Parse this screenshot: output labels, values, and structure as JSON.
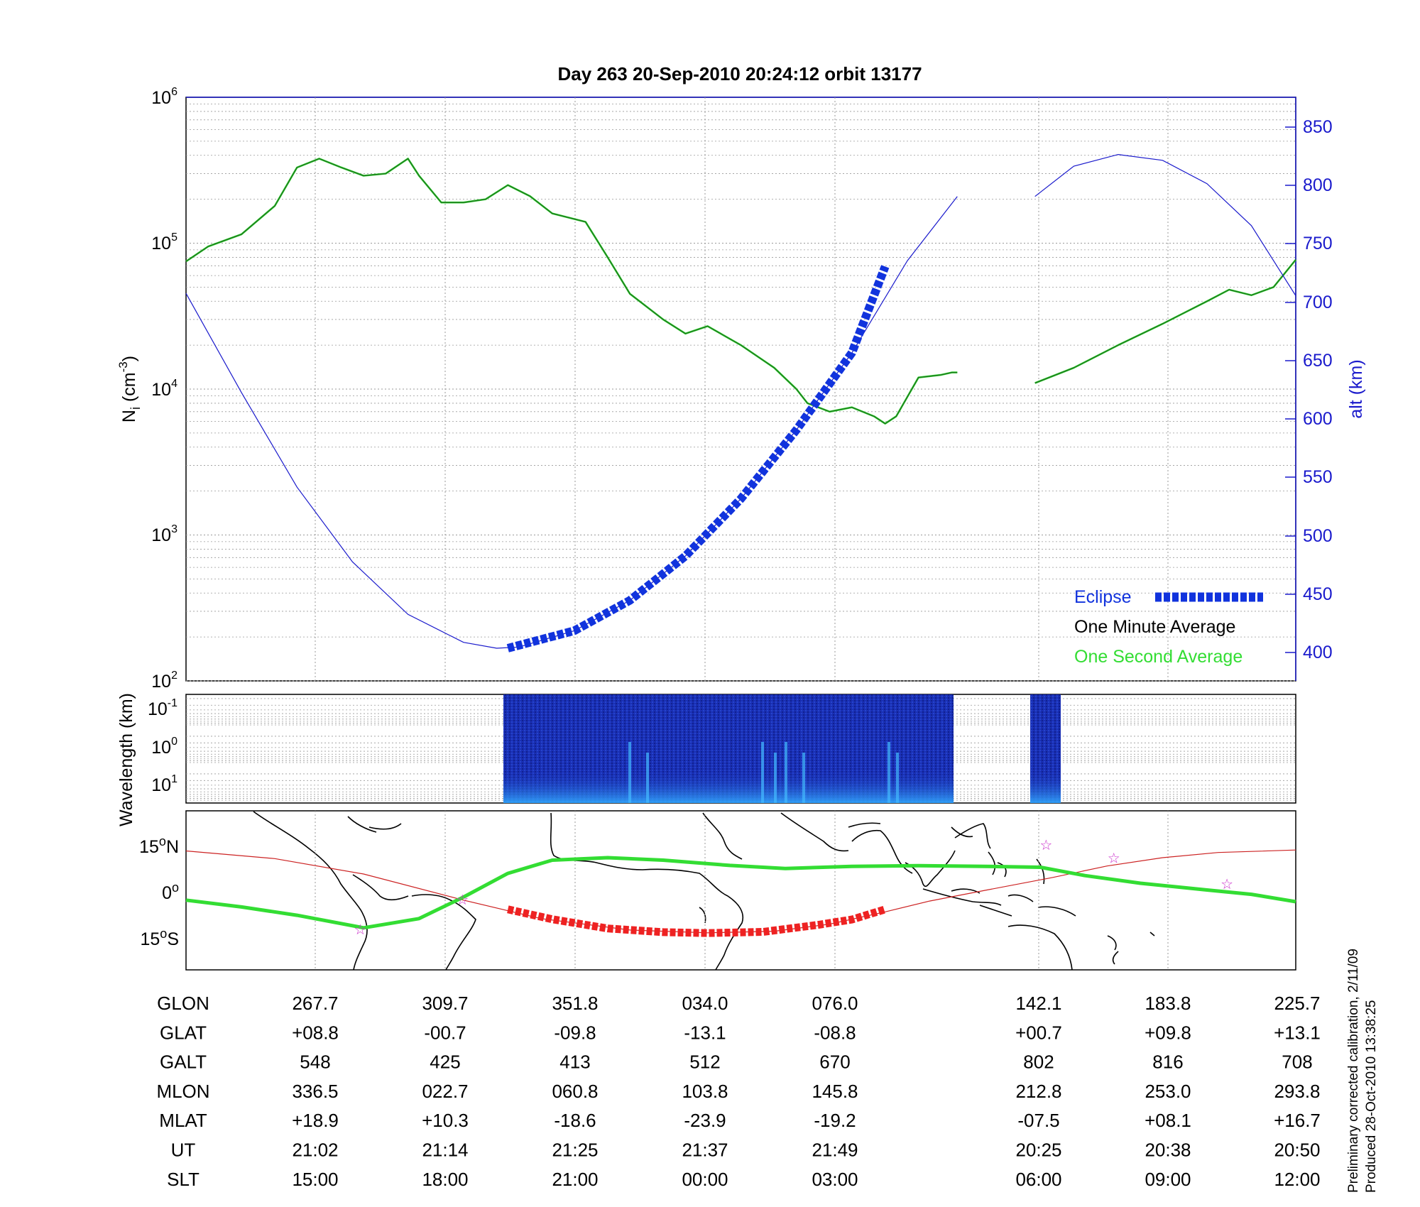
{
  "header": {
    "title": "Day 263  20-Sep-2010 20:24:12   orbit 13177"
  },
  "colors": {
    "density": "#1e7a1e",
    "one_second": "#33dd33",
    "eclipse": "#1133dd",
    "altitude": "#1a1acc",
    "map_track": "#cc2222",
    "map_eclipse": "#ee2222",
    "star": "#cc33cc",
    "spectrogram_bg": "#1a2fb5"
  },
  "legend": {
    "eclipse": "Eclipse",
    "one_minute": "One Minute Average",
    "one_second": "One Second Average"
  },
  "panels": {
    "density": {
      "ylabel": "N",
      "ylabel_sub": "i",
      "ylabel_unit": "(cm",
      "ylabel_sup": "-3",
      "ylabel_close": ")",
      "y_ticks": [
        {
          "base": "10",
          "exp": "6"
        },
        {
          "base": "10",
          "exp": "5"
        },
        {
          "base": "10",
          "exp": "4"
        },
        {
          "base": "10",
          "exp": "3"
        },
        {
          "base": "10",
          "exp": "2"
        }
      ],
      "right_label": "alt (km)",
      "right_ticks": [
        "850",
        "800",
        "750",
        "700",
        "650",
        "600",
        "550",
        "500",
        "450",
        "400"
      ]
    },
    "spectrogram": {
      "ylabel": "Wavelength (km)",
      "y_ticks": [
        {
          "base": "10",
          "exp": "-1"
        },
        {
          "base": "10",
          "exp": "0"
        },
        {
          "base": "10",
          "exp": "1"
        }
      ]
    },
    "map": {
      "y_ticks": [
        {
          "deg": "15",
          "hemi": "N"
        },
        {
          "deg": "0",
          "hemi": ""
        },
        {
          "deg": "15",
          "hemi": "S"
        }
      ]
    }
  },
  "chart_data": {
    "type": "line",
    "title": "Day 263  20-Sep-2010 20:24:12   orbit 13177",
    "y_scale": "log",
    "ylim": [
      100,
      1000000
    ],
    "y2lim": [
      375,
      875
    ],
    "series": [
      {
        "name": "One Minute Average",
        "axis": "left",
        "segments": [
          [
            [
              0.0,
              75000
            ],
            [
              0.02,
              95000
            ],
            [
              0.05,
              115000
            ],
            [
              0.08,
              180000
            ],
            [
              0.1,
              330000
            ],
            [
              0.12,
              380000
            ],
            [
              0.14,
              330000
            ],
            [
              0.16,
              290000
            ],
            [
              0.18,
              300000
            ],
            [
              0.2,
              380000
            ],
            [
              0.21,
              290000
            ],
            [
              0.23,
              190000
            ],
            [
              0.25,
              190000
            ],
            [
              0.27,
              200000
            ],
            [
              0.29,
              250000
            ],
            [
              0.31,
              210000
            ],
            [
              0.33,
              160000
            ],
            [
              0.36,
              140000
            ],
            [
              0.38,
              80000
            ],
            [
              0.4,
              45000
            ],
            [
              0.43,
              30000
            ],
            [
              0.45,
              24000
            ],
            [
              0.47,
              27000
            ],
            [
              0.5,
              20000
            ],
            [
              0.53,
              14000
            ],
            [
              0.55,
              10000
            ],
            [
              0.56,
              8000
            ],
            [
              0.58,
              7000
            ],
            [
              0.6,
              7500
            ],
            [
              0.62,
              6500
            ],
            [
              0.63,
              5800
            ],
            [
              0.64,
              6500
            ],
            [
              0.66,
              12000
            ],
            [
              0.68,
              12500
            ],
            [
              0.69,
              13000
            ],
            [
              0.695,
              13000
            ]
          ],
          [
            [
              0.765,
              11000
            ],
            [
              0.8,
              14000
            ],
            [
              0.84,
              20000
            ],
            [
              0.88,
              28000
            ],
            [
              0.92,
              40000
            ],
            [
              0.94,
              48000
            ],
            [
              0.96,
              44000
            ],
            [
              0.98,
              50000
            ],
            [
              1.0,
              77000
            ]
          ]
        ]
      },
      {
        "name": "alt (km)",
        "axis": "right",
        "segments": [
          [
            [
              0.0,
              707
            ],
            [
              0.05,
              622
            ],
            [
              0.1,
              541
            ],
            [
              0.15,
              477
            ],
            [
              0.2,
              432
            ],
            [
              0.25,
              408
            ],
            [
              0.28,
              403
            ],
            [
              0.3,
              404
            ],
            [
              0.35,
              418
            ],
            [
              0.4,
              444
            ],
            [
              0.45,
              482
            ],
            [
              0.5,
              531
            ],
            [
              0.55,
              590
            ],
            [
              0.6,
              656
            ],
            [
              0.65,
              735
            ],
            [
              0.695,
              790
            ]
          ],
          [
            [
              0.765,
              790
            ],
            [
              0.8,
              816
            ],
            [
              0.84,
              826
            ],
            [
              0.88,
              821
            ],
            [
              0.92,
              801
            ],
            [
              0.96,
              765
            ],
            [
              1.0,
              705
            ]
          ]
        ]
      },
      {
        "name": "Eclipse",
        "axis": "right",
        "segments": [
          [
            [
              0.29,
              403
            ],
            [
              0.35,
              418
            ],
            [
              0.4,
              444
            ],
            [
              0.45,
              482
            ],
            [
              0.5,
              531
            ],
            [
              0.55,
              590
            ],
            [
              0.6,
              656
            ],
            [
              0.63,
              730
            ]
          ]
        ]
      }
    ]
  },
  "map_track": {
    "ground_track": [
      [
        0,
        13.5
      ],
      [
        0.08,
        11
      ],
      [
        0.16,
        6
      ],
      [
        0.25,
        -2.5
      ],
      [
        0.32,
        -8.5
      ],
      [
        0.4,
        -12.2
      ],
      [
        0.47,
        -13.1
      ],
      [
        0.53,
        -12.6
      ],
      [
        0.58,
        -10.3
      ],
      [
        0.63,
        -6.3
      ],
      [
        0.67,
        -2.8
      ],
      [
        0.72,
        0.7
      ],
      [
        0.78,
        4.8
      ],
      [
        0.83,
        8.6
      ],
      [
        0.88,
        11.3
      ],
      [
        0.93,
        13.0
      ],
      [
        1.0,
        13.8
      ]
    ],
    "eclipse_track": [
      [
        0.29,
        -5.5
      ],
      [
        0.33,
        -8.7
      ],
      [
        0.38,
        -11.7
      ],
      [
        0.43,
        -12.9
      ],
      [
        0.47,
        -13.2
      ],
      [
        0.52,
        -12.8
      ],
      [
        0.57,
        -10.5
      ],
      [
        0.6,
        -8.8
      ],
      [
        0.63,
        -5.5
      ]
    ],
    "green_line": [
      [
        0,
        -2.5
      ],
      [
        0.05,
        -4.7
      ],
      [
        0.1,
        -7.4
      ],
      [
        0.16,
        -11.5
      ],
      [
        0.21,
        -8.5
      ],
      [
        0.25,
        -1.5
      ],
      [
        0.29,
        6.2
      ],
      [
        0.33,
        10.5
      ],
      [
        0.38,
        11.3
      ],
      [
        0.43,
        10.5
      ],
      [
        0.49,
        8.8
      ],
      [
        0.54,
        7.8
      ],
      [
        0.6,
        8.5
      ],
      [
        0.66,
        8.7
      ],
      [
        0.72,
        8.5
      ],
      [
        0.77,
        8.2
      ],
      [
        0.81,
        5.5
      ],
      [
        0.86,
        3.0
      ],
      [
        0.92,
        0.8
      ],
      [
        0.96,
        -0.6
      ],
      [
        1.0,
        -3.0
      ]
    ],
    "stars": [
      [
        0.157,
        -12
      ],
      [
        0.249,
        -2.3
      ],
      [
        0.775,
        15.5
      ],
      [
        0.836,
        11.2
      ],
      [
        0.938,
        2.8
      ]
    ]
  },
  "table": {
    "rows": [
      {
        "label": "GLON",
        "values": [
          "267.7",
          "309.7",
          "351.8",
          "034.0",
          "076.0",
          "142.1",
          "183.8",
          "225.7"
        ]
      },
      {
        "label": "GLAT",
        "values": [
          "+08.8",
          "-00.7",
          "-09.8",
          "-13.1",
          "-08.8",
          "+00.7",
          "+09.8",
          "+13.1"
        ]
      },
      {
        "label": "GALT",
        "values": [
          "548",
          "425",
          "413",
          "512",
          "670",
          "802",
          "816",
          "708"
        ]
      },
      {
        "label": "MLON",
        "values": [
          "336.5",
          "022.7",
          "060.8",
          "103.8",
          "145.8",
          "212.8",
          "253.0",
          "293.8"
        ]
      },
      {
        "label": "MLAT",
        "values": [
          "+18.9",
          "+10.3",
          "-18.6",
          "-23.9",
          "-19.2",
          "-07.5",
          "+08.1",
          "+16.7"
        ]
      },
      {
        "label": "UT",
        "values": [
          "21:02",
          "21:14",
          "21:25",
          "21:37",
          "21:49",
          "20:25",
          "20:38",
          "20:50"
        ]
      },
      {
        "label": "SLT",
        "values": [
          "15:00",
          "18:00",
          "21:00",
          "00:00",
          "03:00",
          "06:00",
          "09:00",
          "12:00"
        ]
      }
    ]
  },
  "footer": {
    "note1": "Preliminary corrected calibration, 2/11/09",
    "note2": "Produced 28-Oct-2010 13:38:25"
  }
}
